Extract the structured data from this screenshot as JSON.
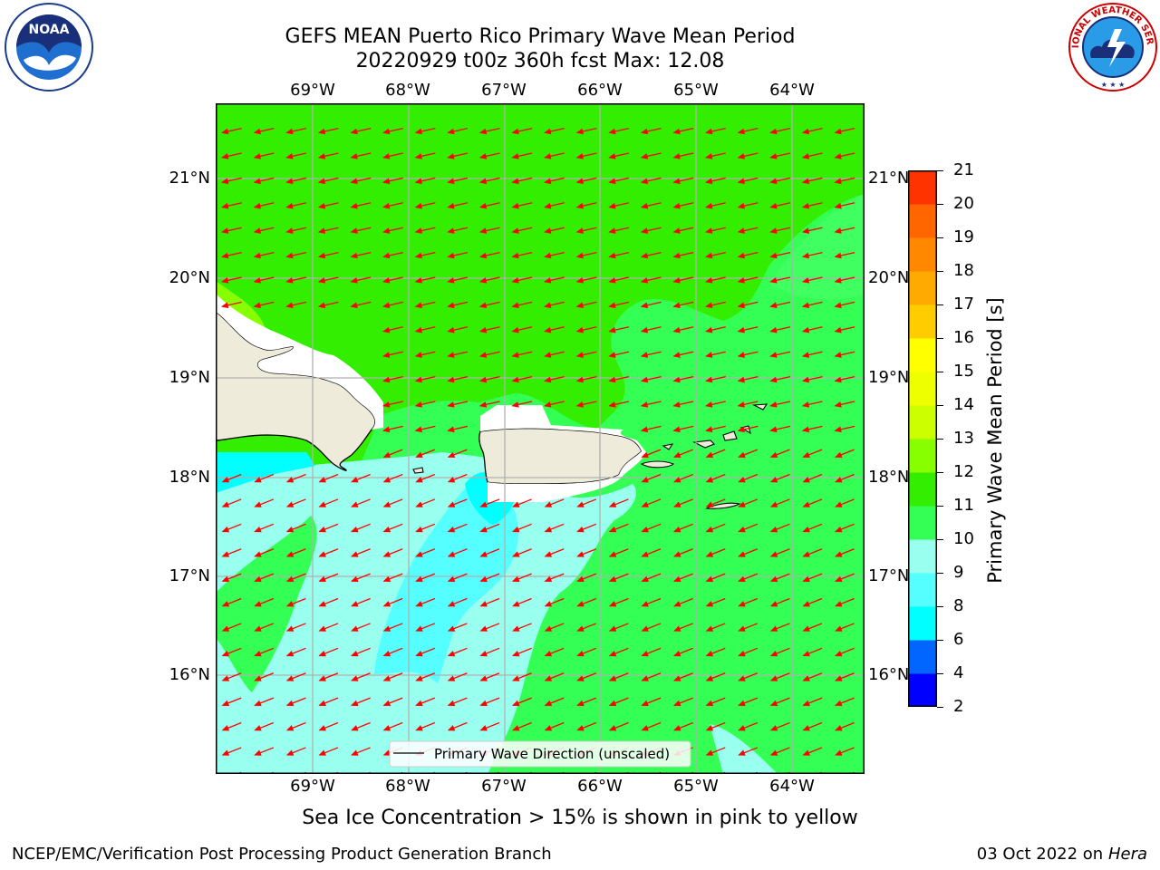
{
  "title_line1": "GEFS MEAN Puerto Rico Primary Wave Mean Period",
  "title_line2": "20220929 t00z 360h fcst   Max: 12.08",
  "logos": {
    "left": {
      "icon": "noaa-logo",
      "text": "NOAA",
      "ring_text": "NATIONAL OCEANIC AND ATMOSPHERIC ADMINISTRATION · U.S. DEPARTMENT OF COMMERCE"
    },
    "right": {
      "icon": "nws-logo",
      "ring_text": "NATIONAL WEATHER SERVICE"
    }
  },
  "map": {
    "lon_labels": [
      "69°W",
      "68°W",
      "67°W",
      "66°W",
      "65°W",
      "64°W"
    ],
    "lat_labels": [
      "21°N",
      "20°N",
      "19°N",
      "18°N",
      "17°N",
      "16°N"
    ],
    "projection_extent": {
      "lon": [
        -69.99,
        -63.25
      ],
      "lat": [
        15.0,
        21.75
      ]
    },
    "grid": true,
    "ocean_color": "#33ff33",
    "land_color": "#eeebdb",
    "arrow_color": "#ff0000",
    "wave_direction": "westward (from east), slightly toward south-west",
    "legend": {
      "label": "Primary Wave Direction (unscaled)",
      "placement": "lower-center"
    }
  },
  "colorbar": {
    "label": "Primary Wave Mean Period [s]",
    "ticks": [
      "21",
      "20",
      "19",
      "18",
      "17",
      "16",
      "15",
      "14",
      "13",
      "12",
      "11",
      "10",
      "9",
      "8",
      "6",
      "4",
      "2"
    ],
    "colors_bottom_to_top": [
      "#0000ff",
      "#0066ff",
      "#00ffff",
      "#55ffff",
      "#99ffee",
      "#33ff55",
      "#33ee00",
      "#88ff00",
      "#ccff00",
      "#eeff00",
      "#ffff00",
      "#ffcc00",
      "#ffaa00",
      "#ff8800",
      "#ff6600",
      "#ff3300",
      "#ff0000"
    ]
  },
  "note": "Sea Ice Concentration > 15% is shown in pink to yellow",
  "footer": {
    "left": "NCEP/EMC/Verification Post Processing Product Generation Branch",
    "right_prefix": "03 Oct 2022 on ",
    "right_machine": "Hera"
  }
}
